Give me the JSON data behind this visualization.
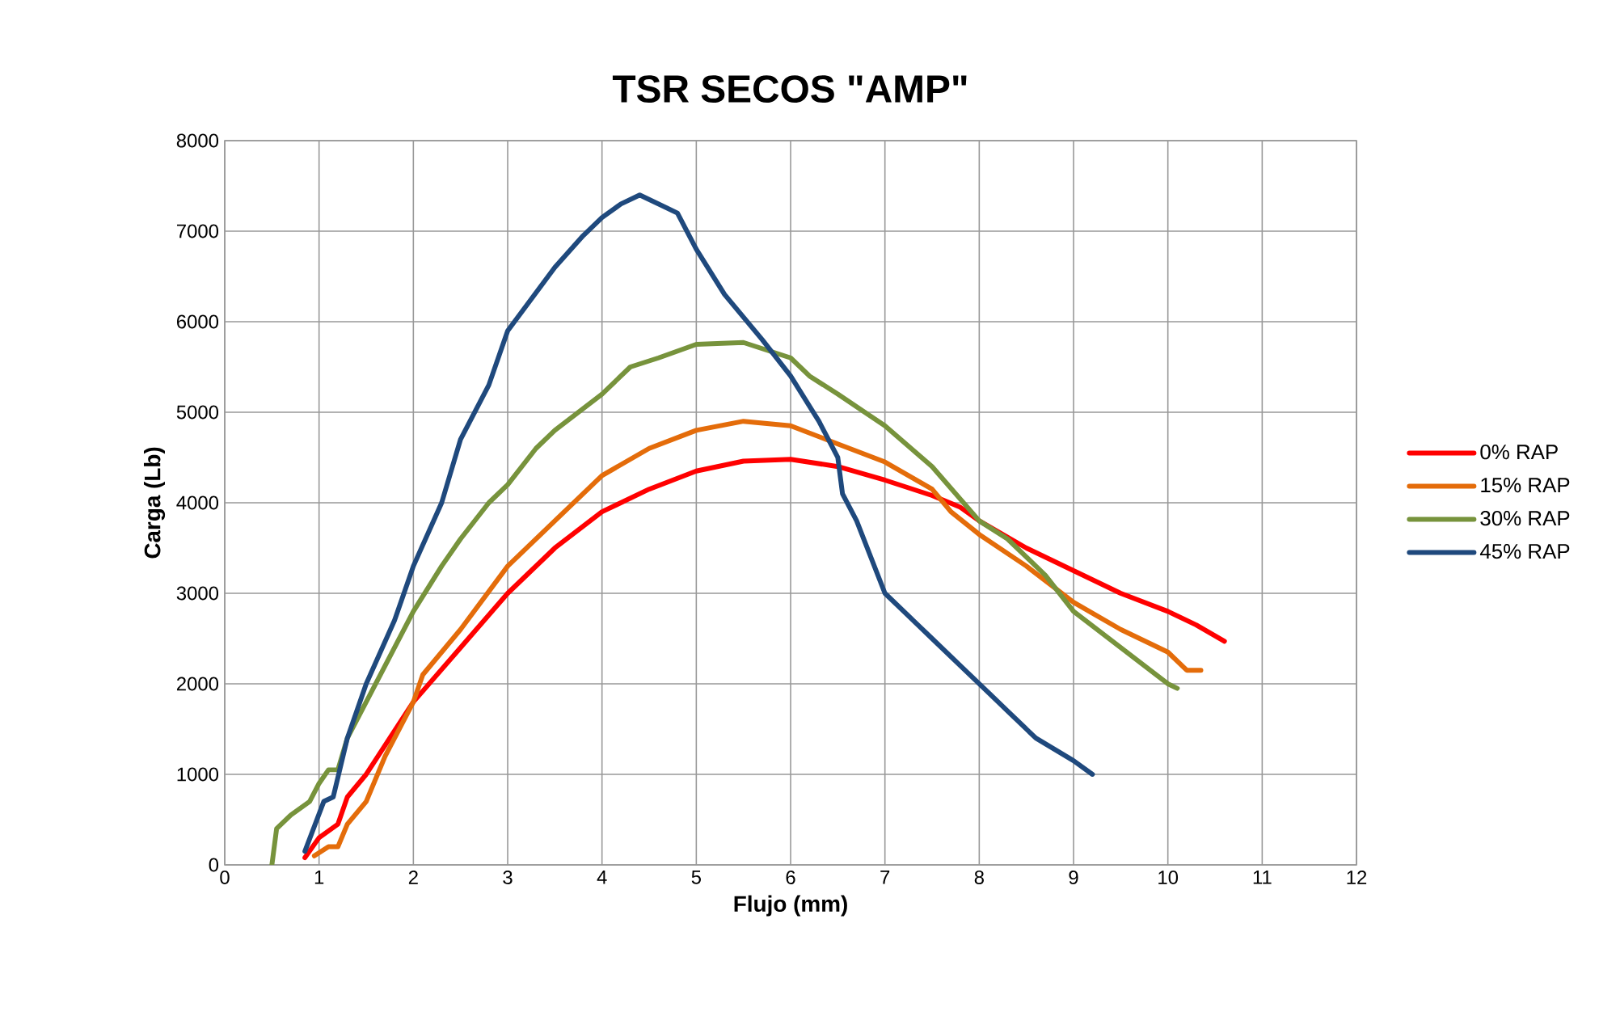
{
  "chart_data": {
    "type": "line",
    "title": "TSR SECOS \"AMP\"",
    "xlabel": "Flujo (mm)",
    "ylabel": "Carga (Lb)",
    "xlim": [
      0,
      12
    ],
    "xticks": [
      0,
      1,
      2,
      3,
      4,
      5,
      6,
      7,
      8,
      9,
      10,
      11,
      12
    ],
    "ylim": [
      0,
      8000
    ],
    "yticks": [
      0,
      1000,
      2000,
      3000,
      4000,
      5000,
      6000,
      7000,
      8000
    ],
    "grid": true,
    "legend": "right",
    "marker": "none",
    "line_style": "solid",
    "series": [
      {
        "name": "0% RAP",
        "color": "#ff0000",
        "x": [
          0.85,
          1.0,
          1.2,
          1.3,
          1.5,
          1.75,
          2,
          2.5,
          3,
          3.5,
          4,
          4.5,
          5,
          5.5,
          6,
          6.5,
          7,
          7.5,
          7.8,
          8,
          8.5,
          9,
          9.5,
          10,
          10.3,
          10.6
        ],
        "values": [
          80,
          300,
          450,
          750,
          1000,
          1400,
          1800,
          2400,
          3000,
          3500,
          3900,
          4150,
          4350,
          4460,
          4480,
          4400,
          4250,
          4080,
          3950,
          3800,
          3500,
          3250,
          3000,
          2800,
          2650,
          2470
        ]
      },
      {
        "name": "15% RAP",
        "color": "#e46c0a",
        "x": [
          0.95,
          1.1,
          1.2,
          1.3,
          1.5,
          1.7,
          2,
          2.1,
          2.5,
          3,
          3.5,
          4,
          4.5,
          5,
          5.5,
          6,
          6.5,
          7,
          7.5,
          7.7,
          8,
          8.5,
          9,
          9.5,
          10,
          10.2,
          10.35
        ],
        "values": [
          100,
          200,
          200,
          450,
          700,
          1200,
          1800,
          2100,
          2600,
          3300,
          3800,
          4300,
          4600,
          4800,
          4900,
          4850,
          4650,
          4450,
          4150,
          3900,
          3650,
          3300,
          2900,
          2600,
          2350,
          2150,
          2150
        ]
      },
      {
        "name": "30% RAP",
        "color": "#77933c",
        "x": [
          0.5,
          0.55,
          0.7,
          0.9,
          1.0,
          1.1,
          1.2,
          1.3,
          1.5,
          1.7,
          2,
          2.3,
          2.5,
          2.8,
          3,
          3.3,
          3.5,
          4,
          4.3,
          4.6,
          5,
          5.5,
          6,
          6.2,
          6.5,
          7,
          7.5,
          8,
          8.3,
          8.7,
          9,
          9.5,
          10,
          10.1
        ],
        "values": [
          0,
          400,
          550,
          700,
          900,
          1050,
          1050,
          1400,
          1800,
          2200,
          2800,
          3300,
          3600,
          4000,
          4200,
          4600,
          4800,
          5200,
          5500,
          5600,
          5750,
          5770,
          5600,
          5400,
          5200,
          4850,
          4400,
          3800,
          3600,
          3200,
          2800,
          2400,
          2000,
          1950
        ]
      },
      {
        "name": "45% RAP",
        "color": "#1f497d",
        "x": [
          0.85,
          1.05,
          1.15,
          1.3,
          1.5,
          1.8,
          2,
          2.3,
          2.5,
          2.8,
          3,
          3.5,
          3.8,
          4.0,
          4.2,
          4.4,
          4.8,
          5,
          5.3,
          5.7,
          6,
          6.3,
          6.5,
          6.55,
          6.7,
          7,
          7.3,
          7.5,
          7.8,
          8.1,
          8.3,
          8.6,
          9,
          9.2
        ],
        "values": [
          150,
          700,
          750,
          1400,
          2000,
          2700,
          3300,
          4000,
          4700,
          5300,
          5900,
          6600,
          6950,
          7150,
          7300,
          7400,
          7200,
          6800,
          6300,
          5800,
          5400,
          4900,
          4500,
          4100,
          3800,
          3000,
          2700,
          2500,
          2200,
          1900,
          1700,
          1400,
          1150,
          1000
        ]
      }
    ]
  }
}
